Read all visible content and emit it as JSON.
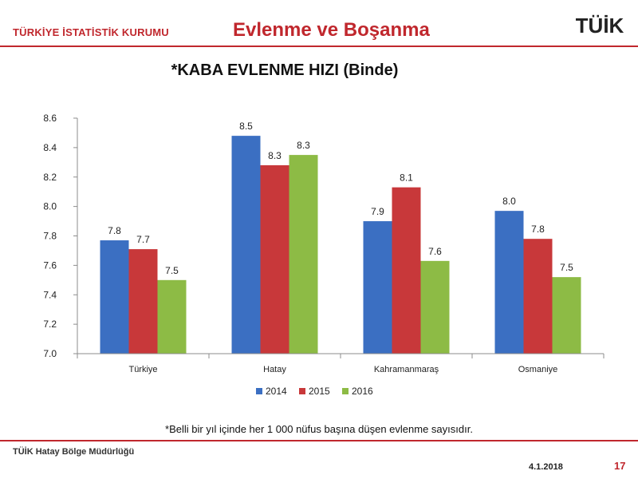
{
  "header": {
    "organization": "TÜRKİYE İSTATİSTİK KURUMU",
    "title": "Evlenme ve Boşanma",
    "logo_text": "TÜİK"
  },
  "footer": {
    "office": "TÜİK Hatay Bölge Müdürlüğü",
    "date": "4.1.2018",
    "page": "17"
  },
  "footnote": "*Belli bir yıl içinde her 1 000 nüfus başına düşen evlenme sayısıdır.",
  "colors": {
    "accent": "#c0272d",
    "s2014": "#3b6fc2",
    "s2015": "#c8383a",
    "s2016": "#8dbb45"
  },
  "chart_data": {
    "type": "bar",
    "title": "*KABA EVLENME HIZI (Binde)",
    "categories": [
      "Türkiye",
      "Hatay",
      "Kahramanmaraş",
      "Osmaniye"
    ],
    "series": [
      {
        "name": "2014",
        "values": [
          7.77,
          8.48,
          7.9,
          7.97
        ],
        "labels": [
          "7.8",
          "8.5",
          "7.9",
          "8.0"
        ]
      },
      {
        "name": "2015",
        "values": [
          7.71,
          8.28,
          8.13,
          7.78
        ],
        "labels": [
          "7.7",
          "8.3",
          "8.1",
          "7.8"
        ]
      },
      {
        "name": "2016",
        "values": [
          7.5,
          8.35,
          7.63,
          7.52
        ],
        "labels": [
          "7.5",
          "8.3",
          "7.6",
          "7.5"
        ]
      }
    ],
    "ylim": [
      7.0,
      8.6
    ],
    "yticks": [
      "7.0",
      "7.2",
      "7.4",
      "7.6",
      "7.8",
      "8.0",
      "8.2",
      "8.4",
      "8.6"
    ],
    "grid": false,
    "legend": "bottom"
  }
}
